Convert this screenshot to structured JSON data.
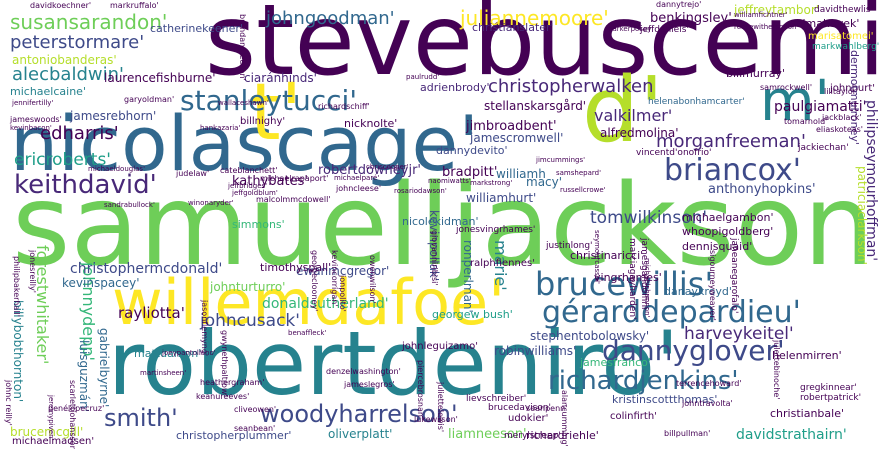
{
  "colors": {
    "background": "#ffffff",
    "dark_purple": "#440154",
    "purple": "#482878",
    "indigo": "#3e4a89",
    "blue": "#31688e",
    "teal": "#26828e",
    "green_teal": "#1f9e89",
    "green": "#35b779",
    "light_green": "#6ece58",
    "lime": "#b5de2b",
    "yellow": "#fde725"
  },
  "words": [
    "stevebuscemi'",
    "samuelljackson'",
    "nicolascage'",
    "robertdeniro'",
    "willemdafoe'",
    "t'",
    "d'",
    "m'",
    "brucewillis'",
    "gérarddepardieu'",
    "stanleytucci'",
    "keithdavid'",
    "briancox'",
    "dannyglover'",
    "richardjenkins'",
    "woodyharrelson'",
    "smith'",
    "juliannemoore'",
    "susansarandon'",
    "johngoodman'",
    "peterstormare'",
    "alecbaldwin'",
    "christopherwalken",
    "morganfreeman'",
    "edharris'",
    "ericroberts'",
    "tomwilkinson'",
    "harveykeitel'",
    "forestwhitaker'",
    "johnnydepp'",
    "christophermcdonald'",
    "johncusack'",
    "rayliotta'",
    "donaldsutherland'",
    "davidstrathairn'",
    "liamneeson'",
    "oliverplatt'",
    "paulgiamatti'",
    "benkingsley'",
    "valkilmer'",
    "jimbroadbent'",
    "alfredmolina'",
    "anthonyhopkins'",
    "robertdowneyjr'",
    "kathybates'",
    "bradpitt'",
    "williamh",
    "macy'",
    "williamhurt'",
    "marie'",
    "kevinpollak'",
    "ronperlman'",
    "johnturturro'",
    "ewanmcgregor'",
    "kevinspacey'",
    "georgew bush'",
    "stephentobolowsky'",
    "robinwilliams'",
    "jamesfranco'",
    "mattdamon'",
    "gabrielbyrne'",
    "luisguzmán'",
    "billybobthornton'",
    "christopherplummer'",
    "richardriehle'",
    "kristinscottthomas'",
    "danaykroyd'",
    "vingrhames'",
    "michaelgambon'",
    "whoopigoldberg'",
    "dennisquaid'",
    "philipseymourhoffman'",
    "patriciaclarkson'",
    "antoniobanderas'",
    "catherinekeener'",
    "christianslater'",
    "jeffreytambor'",
    "salmahayek'",
    "marisatomei'",
    "markwahlberg'",
    "laurencefishburne'",
    "ciaránhinds'",
    "michaelcaine'",
    "adrienbrody'",
    "helenabonhamcarter'",
    "stellanskarsgård'",
    "jamesrebhorn'",
    "billnighy'",
    "nicknolte'",
    "billmurray'",
    "johnhurt'",
    "dermotmulroney'",
    "jamescromwell'",
    "dannydevito'",
    "vincentd'onofrio'",
    "jackiechan'",
    "simmons'",
    "nicolekidman'",
    "timothyspall'",
    "jamesgandolfini",
    "marciagayharden'",
    "janeanegarofalo'",
    "christinaricci'",
    "ralphfiennes'",
    "justinlong'",
    "jonesvingrhames'",
    "johnleguizamo'",
    "helenmirren'",
    "christianbale'",
    "robertpatrick'",
    "gregkinnear'",
    "udokier'",
    "brucedavison'",
    "lievschreiber'",
    "merylstreep'",
    "colinfirth'",
    "brucemcgill'",
    "michaelmadsen'",
    "dannytrejo'",
    "davidkoechner'",
    "markruffalo'",
    "jeffdaniels'",
    "parkerposey'",
    "reesewitherspoon'",
    "brendangleeson'",
    "richardschiff'",
    "paulrudd'",
    "samrockwell'",
    "lilitaylor'",
    "jameswoods'",
    "garyoldman'",
    "kevinbacon'",
    "malcolmmcdowell'",
    "johncleese'",
    "cateblanchett'",
    "judelaw'",
    "michaeldouglas'",
    "michaelrapaport'",
    "sandrabullock'",
    "winonaryder'",
    "jeffbridges'",
    "heathergraham'",
    "keanureeves'",
    "scarlettjohansson'",
    "penélopecruz'",
    "cliveowen'",
    "seanbean'",
    "gwynethpaltrow'",
    "denzelwashington'",
    "jameslegros'",
    "piercebrosnan'",
    "lukewilson'",
    "juliettelewis'",
    "seanpenn'",
    "billpullman'",
    "terrencehoward'",
    "johntravolta'",
    "alancumming'",
    "jimcummings'",
    "naomiwatts'",
    "rosariodawson'",
    "russellcrowe'",
    "markstrong'",
    "owenwilson'",
    "jasonflemyng'",
    "georgeclooney'",
    "kevincorrigan'",
    "philipbakerhall'",
    "jeremypiven'",
    "martinsheen'",
    "joeypantoliano'",
    "benaffleck'",
    "michaelparé'",
    "jennifertilly'",
    "cuspacer",
    "davidthewlis'",
    "williamfichtner'",
    "tomarnold'",
    "eliaskoteas'",
    "jackblack'",
    "samshepard'",
    "seymourcassel'",
    "sigourneyweaver'",
    "julettebinoche'",
    "giovanniribisi'",
    "michaelshannon'",
    "jonpolito'",
    "jonesreilly'",
    "johnc reilly'",
    "hankazaria'",
    "wallaceshawn'",
    "jeffgoldblum'",
    "chriscooper'"
  ]
}
